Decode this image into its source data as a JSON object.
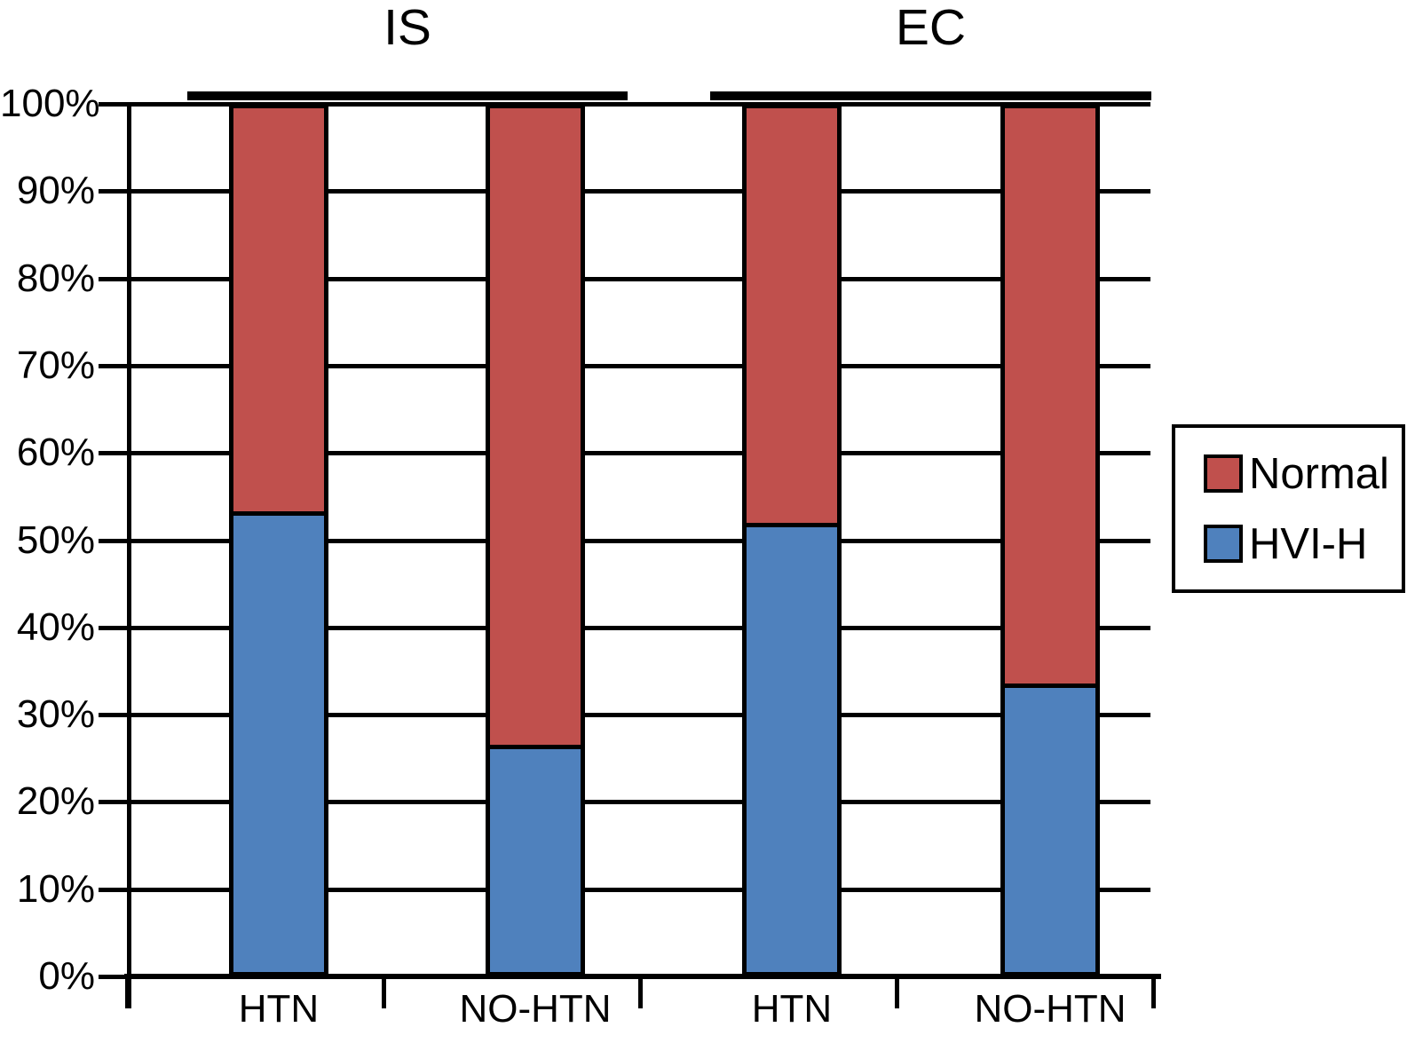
{
  "chart_data": {
    "type": "bar",
    "stacked": true,
    "percent_stacked": true,
    "value_unit": "%",
    "title": "",
    "xlabel": "",
    "ylabel": "",
    "groups": [
      {
        "label": "IS",
        "categories": [
          "HTN",
          "NO-HTN"
        ]
      },
      {
        "label": "EC",
        "categories": [
          "HTN",
          "NO-HTN"
        ]
      }
    ],
    "categories": [
      "HTN",
      "NO-HTN",
      "HTN",
      "NO-HTN"
    ],
    "series": [
      {
        "name": "HVI-H",
        "color": "#4F81BD",
        "values": [
          53.3,
          26.3,
          52.0,
          33.4
        ]
      },
      {
        "name": "Normal",
        "color": "#C0504D",
        "values": [
          46.7,
          73.7,
          48.0,
          66.6
        ]
      }
    ],
    "ylim": [
      0,
      100
    ],
    "y_ticks": [
      "0%",
      "10%",
      "20%",
      "30%",
      "40%",
      "50%",
      "60%",
      "70%",
      "80%",
      "90%",
      "100%"
    ],
    "grid": true,
    "legend": {
      "position": "right",
      "entries": [
        {
          "label": "Normal",
          "color": "#C0504D"
        },
        {
          "label": "HVI-H",
          "color": "#4F81BD"
        }
      ]
    },
    "colors": {
      "axis": "#000000",
      "background": "#FFFFFF"
    }
  }
}
